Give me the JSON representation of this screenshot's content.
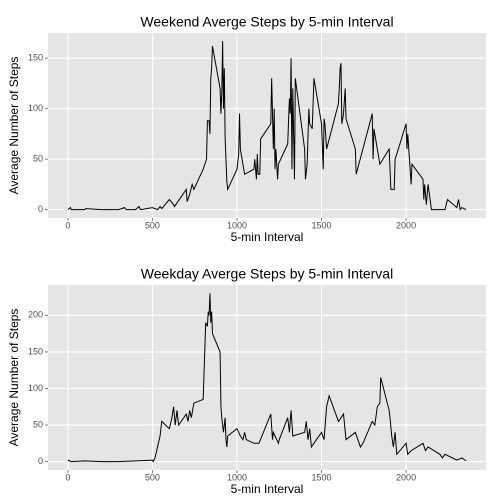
{
  "chart_data": [
    {
      "type": "line",
      "title": "Weekend Averge Steps by 5-min Interval",
      "xlabel": "5-min Interval",
      "ylabel": "Average Number of Steps",
      "color": "#000000",
      "grid": true,
      "x": [
        0,
        15,
        20,
        100,
        105,
        200,
        300,
        335,
        345,
        400,
        420,
        430,
        500,
        530,
        545,
        555,
        600,
        625,
        630,
        700,
        705,
        720,
        735,
        745,
        800,
        820,
        825,
        835,
        840,
        845,
        850,
        855,
        900,
        905,
        910,
        915,
        920,
        925,
        930,
        940,
        945,
        1000,
        1010,
        1015,
        1020,
        1030,
        1045,
        1100,
        1105,
        1115,
        1120,
        1125,
        1135,
        1140,
        1200,
        1205,
        1215,
        1220,
        1225,
        1230,
        1240,
        1245,
        1300,
        1310,
        1315,
        1320,
        1325,
        1330,
        1340,
        1345,
        1400,
        1405,
        1415,
        1425,
        1430,
        1445,
        1455,
        1500,
        1510,
        1515,
        1520,
        1530,
        1600,
        1605,
        1610,
        1615,
        1620,
        1630,
        1640,
        1645,
        1700,
        1705,
        1800,
        1805,
        1810,
        1830,
        1845,
        1900,
        1905,
        1910,
        1930,
        1935,
        1945,
        2000,
        2005,
        2010,
        2030,
        2035,
        2100,
        2105,
        2110,
        2120,
        2130,
        2150,
        2200,
        2230,
        2245,
        2300,
        2310,
        2320,
        2330,
        2355
      ],
      "values": [
        0,
        2,
        0,
        0,
        1,
        0,
        0,
        2,
        0,
        0,
        3,
        0,
        2,
        0,
        3,
        1,
        10,
        5,
        3,
        20,
        8,
        15,
        25,
        20,
        40,
        50,
        88,
        88,
        75,
        130,
        140,
        162,
        120,
        95,
        115,
        167,
        100,
        140,
        70,
        28,
        20,
        40,
        55,
        95,
        60,
        50,
        35,
        40,
        50,
        30,
        55,
        35,
        35,
        70,
        85,
        130,
        60,
        100,
        40,
        60,
        30,
        45,
        65,
        110,
        95,
        150,
        40,
        120,
        30,
        130,
        60,
        30,
        45,
        100,
        85,
        80,
        130,
        85,
        40,
        90,
        85,
        60,
        105,
        120,
        140,
        145,
        85,
        95,
        120,
        90,
        60,
        35,
        95,
        50,
        80,
        60,
        45,
        60,
        40,
        20,
        20,
        50,
        55,
        85,
        60,
        75,
        25,
        45,
        30,
        10,
        25,
        5,
        25,
        0,
        0,
        0,
        10,
        2,
        10,
        0,
        2,
        0
      ],
      "xlim": [
        -117.75,
        2472.75
      ],
      "ylim": [
        -8.3,
        174.9
      ],
      "xticks": [
        0,
        500,
        1000,
        1500,
        2000
      ],
      "yticks": [
        0,
        50,
        100,
        150
      ]
    },
    {
      "type": "line",
      "title": "Weekday Averge Steps by 5-min Interval",
      "xlabel": "5-min Interval",
      "ylabel": "Average Number of Steps",
      "color": "#000000",
      "grid": true,
      "x": [
        0,
        20,
        100,
        200,
        300,
        400,
        500,
        505,
        515,
        530,
        545,
        555,
        600,
        615,
        625,
        635,
        645,
        655,
        700,
        710,
        720,
        730,
        745,
        800,
        815,
        825,
        830,
        835,
        840,
        845,
        850,
        855,
        900,
        905,
        910,
        920,
        930,
        935,
        940,
        945,
        1000,
        1010,
        1020,
        1035,
        1045,
        1055,
        1100,
        1130,
        1200,
        1210,
        1215,
        1245,
        1250,
        1300,
        1310,
        1320,
        1330,
        1400,
        1410,
        1420,
        1430,
        1440,
        1500,
        1515,
        1530,
        1545,
        1600,
        1615,
        1630,
        1645,
        1700,
        1730,
        1745,
        1800,
        1815,
        1830,
        1845,
        1850,
        1900,
        1905,
        1915,
        1925,
        1935,
        1945,
        2000,
        2010,
        2030,
        2100,
        2115,
        2130,
        2200,
        2215,
        2230,
        2300,
        2330,
        2355
      ],
      "values": [
        2,
        0,
        1,
        0,
        0,
        1,
        2,
        0,
        5,
        20,
        35,
        55,
        45,
        60,
        75,
        50,
        70,
        50,
        65,
        55,
        70,
        60,
        80,
        85,
        190,
        185,
        205,
        200,
        230,
        190,
        205,
        175,
        150,
        75,
        60,
        40,
        60,
        30,
        20,
        35,
        45,
        40,
        35,
        30,
        40,
        30,
        25,
        25,
        65,
        30,
        40,
        25,
        30,
        60,
        40,
        70,
        35,
        40,
        55,
        30,
        45,
        20,
        40,
        30,
        75,
        90,
        55,
        60,
        65,
        30,
        40,
        20,
        25,
        55,
        50,
        75,
        80,
        115,
        70,
        60,
        35,
        20,
        40,
        10,
        25,
        10,
        15,
        25,
        15,
        20,
        10,
        5,
        10,
        2,
        5,
        1
      ],
      "xlim": [
        -117.75,
        2472.75
      ],
      "ylim": [
        -11.5,
        241.5
      ],
      "xticks": [
        0,
        500,
        1000,
        1500,
        2000
      ],
      "yticks": [
        0,
        50,
        100,
        150,
        200
      ]
    }
  ]
}
